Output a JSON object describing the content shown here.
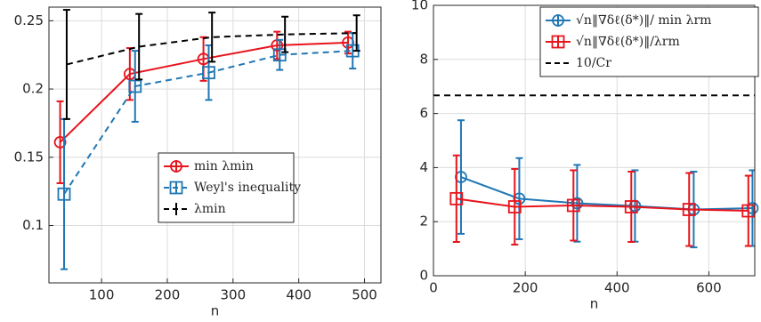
{
  "chart_data": [
    {
      "type": "errorbar",
      "xlabel": "n",
      "xlim": [
        20,
        525
      ],
      "ylim": [
        0.058,
        0.26
      ],
      "xticks": [
        100,
        200,
        300,
        400,
        500
      ],
      "yticks": [
        0.1,
        0.15,
        0.2,
        0.25
      ],
      "grid": true,
      "legend": "center-right",
      "series": [
        {
          "name": "min λmin",
          "color": "#e8141c",
          "marker": "circle",
          "dashed": false,
          "x": [
            37,
            143,
            255,
            367,
            475
          ],
          "values": [
            0.161,
            0.211,
            0.222,
            0.232,
            0.234
          ],
          "errors": [
            0.03,
            0.019,
            0.016,
            0.01,
            0.008
          ]
        },
        {
          "name": "Weyl's inequality",
          "color": "#1f77b4",
          "marker": "square",
          "dashed": true,
          "x": [
            43,
            151,
            263,
            371,
            482
          ],
          "values": [
            0.123,
            0.202,
            0.212,
            0.225,
            0.228
          ],
          "errors": [
            0.055,
            0.026,
            0.02,
            0.011,
            0.013
          ]
        },
        {
          "name": "λmin",
          "color": "#000000",
          "marker": "none",
          "dashed": true,
          "x": [
            47,
            157,
            268,
            379,
            488
          ],
          "values": [
            0.218,
            0.231,
            0.238,
            0.24,
            0.241
          ],
          "errors": [
            0.04,
            0.024,
            0.018,
            0.013,
            0.013
          ]
        }
      ]
    },
    {
      "type": "errorbar",
      "xlabel": "n",
      "xlim": [
        0,
        700
      ],
      "ylim": [
        0,
        10
      ],
      "xticks": [
        0,
        200,
        400,
        600
      ],
      "yticks": [
        0,
        2,
        4,
        6,
        8,
        10
      ],
      "grid": true,
      "legend": "upper-right",
      "series": [
        {
          "name": "√n‖∇δℓ(δ*)‖/ min λrm",
          "color": "#1f77b4",
          "marker": "circle",
          "dashed": false,
          "x": [
            60,
            187,
            313,
            439,
            567,
            695
          ],
          "values": [
            3.65,
            2.85,
            2.68,
            2.58,
            2.45,
            2.5
          ],
          "errors": [
            2.1,
            1.5,
            1.42,
            1.32,
            1.4,
            1.4
          ]
        },
        {
          "name": "√n‖∇δℓ(δ*)‖/λrm",
          "color": "#e8141c",
          "marker": "square",
          "dashed": false,
          "x": [
            50,
            177,
            305,
            431,
            557,
            686
          ],
          "values": [
            2.85,
            2.55,
            2.6,
            2.55,
            2.45,
            2.4
          ],
          "errors": [
            1.6,
            1.4,
            1.3,
            1.3,
            1.35,
            1.3
          ]
        },
        {
          "name": "10/Cr",
          "color": "#000000",
          "marker": "none",
          "dashed": true,
          "hline": 6.67
        }
      ]
    }
  ]
}
